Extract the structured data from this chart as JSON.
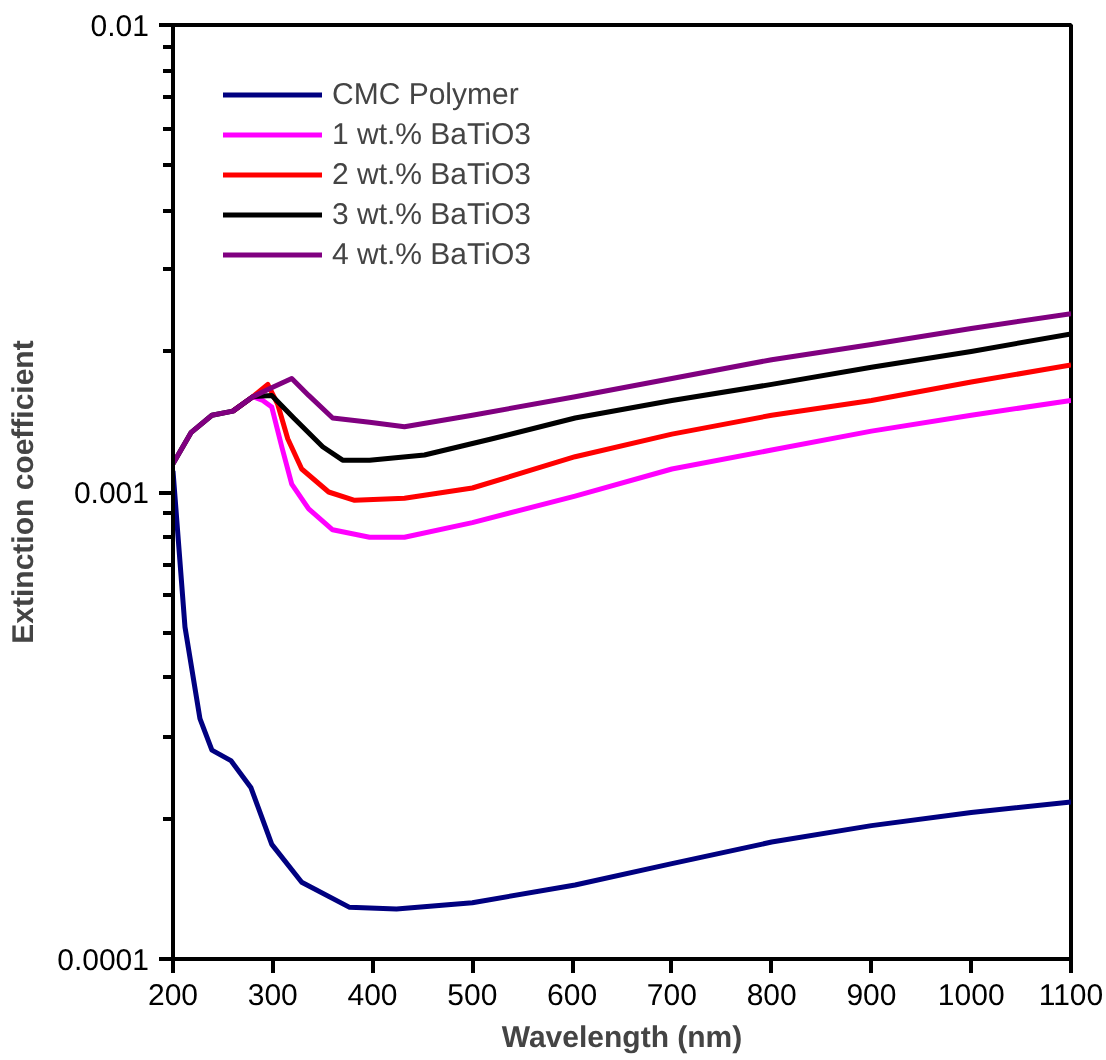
{
  "chart_data": {
    "type": "line",
    "xlabel": "Wavelength (nm)",
    "ylabel": "Extinction coefficient",
    "log": "y",
    "xlim": [
      200,
      1100
    ],
    "xticks": [
      200,
      300,
      400,
      500,
      600,
      700,
      800,
      900,
      1000,
      1100
    ],
    "ylim": [
      0.0001,
      0.01
    ],
    "yticks": [
      0.0001,
      0.001,
      0.01
    ],
    "grid": false,
    "legend": "top left",
    "marker": "none",
    "line_style": "solid",
    "series": [
      {
        "name": "CMC Polymer",
        "color": "#000080",
        "x": [
          200,
          212,
          227,
          239,
          258,
          278,
          299,
          329,
          377,
          424,
          500,
          603,
          700,
          800,
          900,
          1000,
          1100
        ],
        "values": [
          0.00111,
          0.000514,
          0.000327,
          0.00028,
          0.000266,
          0.000233,
          0.000176,
          0.000146,
          0.000129,
          0.000128,
          0.000132,
          0.000144,
          0.00016,
          0.000178,
          0.000193,
          0.000206,
          0.000217
        ]
      },
      {
        "name": "1 wt.% BaTiO3",
        "color": "#ff00ff",
        "x": [
          260,
          280,
          290,
          299,
          309,
          319,
          336,
          360,
          397,
          432,
          500,
          603,
          700,
          800,
          900,
          1000,
          1100
        ],
        "values": [
          0.00149,
          0.0016,
          0.00157,
          0.00152,
          0.00125,
          0.00104,
          0.00092,
          0.00083,
          0.0008,
          0.0008,
          0.00086,
          0.00098,
          0.00112,
          0.00123,
          0.00135,
          0.00146,
          0.00157
        ]
      },
      {
        "name": "2 wt.% BaTiO3",
        "color": "#ff0000",
        "x": [
          260,
          280,
          295,
          305,
          315,
          329,
          356,
          382,
          432,
          500,
          603,
          700,
          800,
          900,
          1000,
          1100
        ],
        "values": [
          0.00149,
          0.0016,
          0.0017,
          0.00154,
          0.0013,
          0.00112,
          0.001,
          0.00096,
          0.00097,
          0.00102,
          0.00119,
          0.00133,
          0.00146,
          0.00157,
          0.00172,
          0.00187
        ]
      },
      {
        "name": "3 wt.% BaTiO3",
        "color": "#000000",
        "x": [
          200,
          218,
          239,
          260,
          280,
          299,
          321,
          350,
          370,
          397,
          452,
          520,
          603,
          700,
          800,
          900,
          1000,
          1100
        ],
        "values": [
          0.00115,
          0.00134,
          0.00146,
          0.00149,
          0.0016,
          0.00161,
          0.00144,
          0.00125,
          0.00117,
          0.00117,
          0.0012,
          0.0013,
          0.00144,
          0.00157,
          0.0017,
          0.00185,
          0.002,
          0.00218
        ]
      },
      {
        "name": "4 wt.% BaTiO3",
        "color": "#800080",
        "x": [
          200,
          218,
          239,
          260,
          280,
          301,
          319,
          336,
          360,
          397,
          432,
          500,
          603,
          700,
          800,
          900,
          1000,
          1100
        ],
        "values": [
          0.00115,
          0.00134,
          0.00146,
          0.00149,
          0.0016,
          0.00168,
          0.00175,
          0.00161,
          0.00144,
          0.00141,
          0.00138,
          0.00146,
          0.0016,
          0.00175,
          0.00192,
          0.00207,
          0.00224,
          0.00241
        ]
      }
    ]
  }
}
